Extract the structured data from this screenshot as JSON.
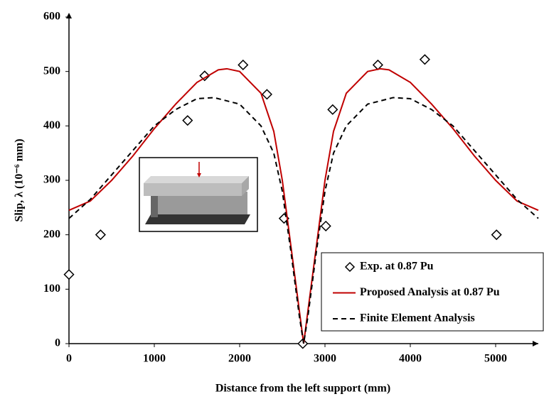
{
  "chart_data": {
    "type": "line",
    "x_label": "Distance from the left support (mm)",
    "y_label": "Slip, λ (10⁻⁶ mm)",
    "xlim": [
      0,
      5500
    ],
    "ylim": [
      0,
      600
    ],
    "xticks": [
      0,
      1000,
      2000,
      3000,
      4000,
      5000
    ],
    "yticks": [
      0,
      100,
      200,
      300,
      400,
      500,
      600
    ],
    "grid": false,
    "legend": "lower right",
    "series": [
      {
        "name": "Exp. at 0.87 Pu",
        "type": "scatter",
        "color": "#000000",
        "x": [
          0,
          370,
          1390,
          1590,
          2040,
          2320,
          2520,
          2740,
          3010,
          3090,
          3620,
          4170,
          5010
        ],
        "values": [
          127,
          200,
          410,
          492,
          512,
          458,
          230,
          0,
          216,
          430,
          512,
          522,
          200
        ]
      },
      {
        "name": "Proposed Analysis at 0.87 Pu",
        "type": "line",
        "line_style": "solid",
        "color": "#c00000",
        "x": [
          0,
          250,
          500,
          750,
          1000,
          1250,
          1500,
          1750,
          1850,
          2000,
          2250,
          2400,
          2500,
          2600,
          2700,
          2750,
          2800,
          2900,
          3000,
          3100,
          3250,
          3500,
          3650,
          3750,
          4000,
          4250,
          4500,
          4750,
          5000,
          5250,
          5500
        ],
        "values": [
          245,
          262,
          300,
          345,
          395,
          440,
          480,
          503,
          505,
          500,
          460,
          390,
          300,
          180,
          60,
          0,
          60,
          180,
          300,
          390,
          460,
          500,
          505,
          503,
          480,
          440,
          395,
          345,
          300,
          262,
          245
        ]
      },
      {
        "name": "Finite Element Analysis",
        "type": "line",
        "line_style": "dashed",
        "color": "#000000",
        "x": [
          0,
          250,
          500,
          750,
          1000,
          1250,
          1500,
          1700,
          2000,
          2250,
          2400,
          2500,
          2600,
          2700,
          2750,
          2800,
          2900,
          3000,
          3100,
          3250,
          3500,
          3800,
          4000,
          4250,
          4500,
          4750,
          5000,
          5250,
          5500
        ],
        "values": [
          230,
          265,
          310,
          355,
          400,
          430,
          450,
          452,
          440,
          400,
          350,
          280,
          170,
          50,
          0,
          50,
          170,
          280,
          350,
          400,
          440,
          452,
          450,
          430,
          400,
          355,
          310,
          265,
          230
        ]
      }
    ]
  }
}
